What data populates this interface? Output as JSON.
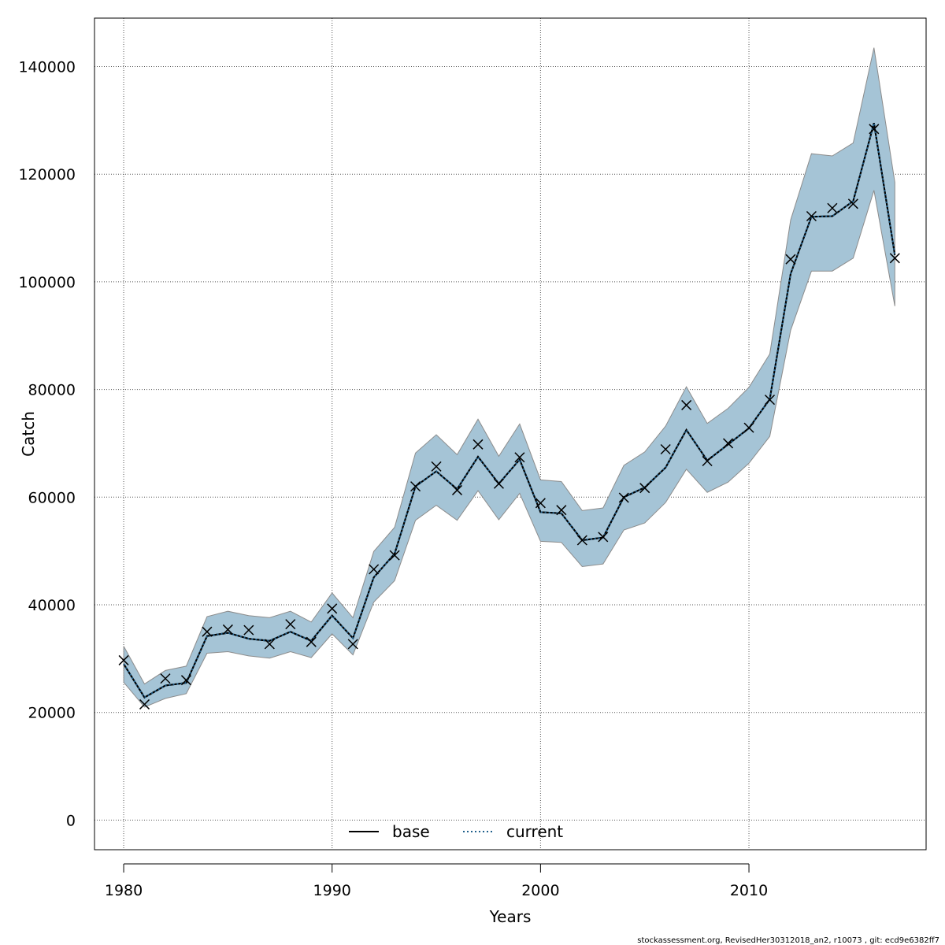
{
  "chart_data": {
    "type": "line",
    "xlabel": "Years",
    "ylabel": "Catch",
    "xlim": [
      1978.6,
      2018.5
    ],
    "ylim": [
      -5500,
      149000
    ],
    "x_ticks": [
      1980,
      1990,
      2000,
      2010
    ],
    "y_ticks": [
      0,
      20000,
      40000,
      60000,
      80000,
      100000,
      120000,
      140000
    ],
    "grid": true,
    "legend_position": "bottom-center",
    "years": [
      1980,
      1981,
      1982,
      1983,
      1984,
      1985,
      1986,
      1987,
      1988,
      1989,
      1990,
      1991,
      1992,
      1993,
      1994,
      1995,
      1996,
      1997,
      1998,
      1999,
      2000,
      2001,
      2002,
      2003,
      2004,
      2005,
      2006,
      2007,
      2008,
      2009,
      2010,
      2011,
      2012,
      2013,
      2014,
      2015,
      2016,
      2017
    ],
    "series": [
      {
        "name": "base",
        "style": "solid",
        "color": "#000000",
        "values": [
          29000,
          22800,
          25000,
          25500,
          34200,
          34800,
          33700,
          33300,
          35000,
          33300,
          38000,
          33800,
          45100,
          49500,
          62000,
          64800,
          61500,
          67500,
          62500,
          67000,
          57200,
          57000,
          52000,
          52500,
          60000,
          61800,
          65500,
          72500,
          66800,
          69800,
          72800,
          78200,
          101500,
          112100,
          112200,
          115000,
          129500,
          105000
        ]
      },
      {
        "name": "current",
        "style": "dotted",
        "color": "#1f5f8b",
        "values": [
          29000,
          22800,
          25000,
          25500,
          34200,
          34800,
          33700,
          33300,
          35000,
          33300,
          38000,
          33800,
          45100,
          49500,
          62000,
          64800,
          61500,
          67500,
          62500,
          67000,
          57200,
          57000,
          52000,
          52500,
          60000,
          61800,
          65500,
          72500,
          66800,
          69800,
          72800,
          78200,
          101500,
          112100,
          112200,
          115000,
          129500,
          105000
        ]
      }
    ],
    "observed": [
      29700,
      21500,
      26300,
      26000,
      35000,
      35400,
      35300,
      32700,
      36400,
      33100,
      39300,
      32700,
      46600,
      49200,
      62000,
      65700,
      61300,
      69800,
      62500,
      67400,
      58900,
      57600,
      52000,
      52600,
      59900,
      61700,
      68900,
      77100,
      66700,
      70000,
      72900,
      78100,
      104200,
      112200,
      113700,
      114500,
      128400,
      104400
    ],
    "ci_lower": [
      25600,
      21000,
      22600,
      23500,
      31000,
      31300,
      30500,
      30100,
      31300,
      30200,
      34600,
      30700,
      40500,
      44500,
      55700,
      58500,
      55700,
      61200,
      55800,
      60700,
      51800,
      51600,
      47100,
      47600,
      53900,
      55200,
      59000,
      65200,
      60900,
      62800,
      66300,
      71300,
      91000,
      102000,
      102000,
      104400,
      117000,
      95500
    ],
    "ci_upper": [
      32300,
      25300,
      27800,
      28600,
      37800,
      38800,
      38000,
      37600,
      38800,
      36800,
      42200,
      37600,
      49900,
      54400,
      68200,
      71600,
      67900,
      74500,
      67600,
      73600,
      63200,
      62900,
      57500,
      58000,
      65900,
      68400,
      73200,
      80500,
      73700,
      76500,
      80400,
      86600,
      111500,
      123800,
      123400,
      125800,
      143500,
      118500
    ],
    "colors": {
      "ci_band": "#a5c4d6",
      "ci_band_edge": "#8c8c8c",
      "observed_marker": "#000000",
      "grid": "#555555"
    }
  },
  "footer_text": "stockassessment.org, RevisedHer30312018_an2, r10073 , git: ecd9e6382ff7"
}
